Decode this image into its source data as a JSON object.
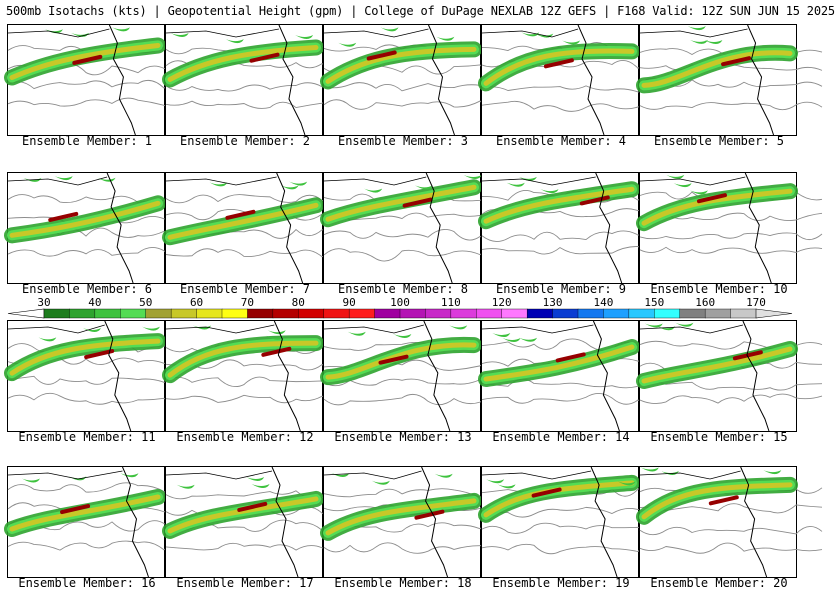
{
  "title": "500mb Isotachs (kts) | Geopotential Height (gpm) | College of DuPage NEXLAB   12Z GEFS | F168 Valid: 12Z SUN JUN 15 2025",
  "members": [
    {
      "label": "Ensemble Member: 1"
    },
    {
      "label": "Ensemble Member: 2"
    },
    {
      "label": "Ensemble Member: 3"
    },
    {
      "label": "Ensemble Member: 4"
    },
    {
      "label": "Ensemble Member: 5"
    },
    {
      "label": "Ensemble Member: 6"
    },
    {
      "label": "Ensemble Member: 7"
    },
    {
      "label": "Ensemble Member: 8"
    },
    {
      "label": "Ensemble Member: 9"
    },
    {
      "label": "Ensemble Member: 10"
    },
    {
      "label": "Ensemble Member: 11"
    },
    {
      "label": "Ensemble Member: 12"
    },
    {
      "label": "Ensemble Member: 13"
    },
    {
      "label": "Ensemble Member: 14"
    },
    {
      "label": "Ensemble Member: 15"
    },
    {
      "label": "Ensemble Member: 16"
    },
    {
      "label": "Ensemble Member: 17"
    },
    {
      "label": "Ensemble Member: 18"
    },
    {
      "label": "Ensemble Member: 19"
    },
    {
      "label": "Ensemble Member: 20"
    }
  ],
  "colorbar": {
    "labels": [
      "30",
      "40",
      "50",
      "60",
      "70",
      "80",
      "90",
      "100",
      "110",
      "120",
      "130",
      "140",
      "150",
      "160",
      "170"
    ],
    "colors": [
      "#1e7d1e",
      "#2ea32e",
      "#3ec23e",
      "#54dc54",
      "#a2a232",
      "#c8c828",
      "#e6e61e",
      "#ffff14",
      "#960000",
      "#b40000",
      "#d20000",
      "#f01414",
      "#ff1e1e",
      "#a000a0",
      "#b414b4",
      "#c828c8",
      "#dc3cdc",
      "#f050f0",
      "#ff78ff",
      "#0000b4",
      "#0a3cd2",
      "#1478f0",
      "#1ea0ff",
      "#28c8ff",
      "#32ffff",
      "#808080",
      "#a0a0a0",
      "#c8c8c8"
    ]
  }
}
